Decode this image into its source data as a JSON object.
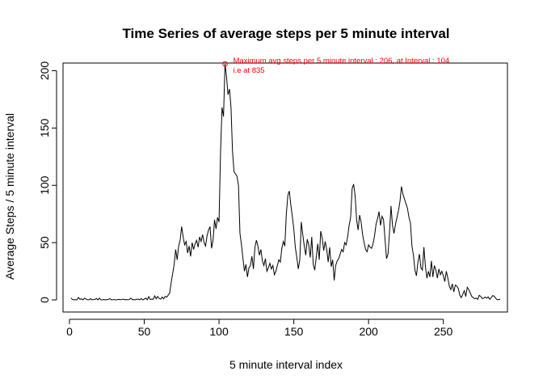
{
  "chart_data": {
    "type": "line",
    "title": "Time Series of average steps per 5 minute interval",
    "xlabel": "5 minute interval index",
    "ylabel": "Average Steps / 5 minute interval",
    "xlim": [
      0,
      288
    ],
    "ylim": [
      0,
      206
    ],
    "x_ticks": [
      0,
      50,
      100,
      150,
      200,
      250
    ],
    "y_ticks": [
      0,
      50,
      100,
      150,
      200
    ],
    "x_tick_labels": [
      "0",
      "50",
      "100",
      "150",
      "200",
      "250"
    ],
    "y_tick_labels": [
      "0",
      "50",
      "100",
      "150",
      "200"
    ],
    "grid": false,
    "series": [
      {
        "color": "#000000",
        "points": [
          [
            1,
            1.7
          ],
          [
            2,
            0.3
          ],
          [
            3,
            0.1
          ],
          [
            4,
            0.2
          ],
          [
            5,
            0.1
          ],
          [
            6,
            2.1
          ],
          [
            7,
            0.5
          ],
          [
            8,
            0.9
          ],
          [
            9,
            0.0
          ],
          [
            10,
            1.5
          ],
          [
            11,
            0.8
          ],
          [
            12,
            0.2
          ],
          [
            13,
            0.1
          ],
          [
            14,
            1.1
          ],
          [
            15,
            0.0
          ],
          [
            16,
            0.3
          ],
          [
            17,
            0.4
          ],
          [
            18,
            1.2
          ],
          [
            19,
            0.0
          ],
          [
            20,
            1.6
          ],
          [
            21,
            0.0
          ],
          [
            22,
            0.1
          ],
          [
            23,
            0.3
          ],
          [
            24,
            0.0
          ],
          [
            25,
            0.2
          ],
          [
            26,
            0.4
          ],
          [
            27,
            1.1
          ],
          [
            28,
            0.1
          ],
          [
            29,
            0.2
          ],
          [
            30,
            0.3
          ],
          [
            31,
            0.0
          ],
          [
            32,
            0.2
          ],
          [
            33,
            0.4
          ],
          [
            34,
            0.2
          ],
          [
            35,
            0.3
          ],
          [
            36,
            0.7
          ],
          [
            37,
            0.1
          ],
          [
            38,
            0.3
          ],
          [
            39,
            0.0
          ],
          [
            40,
            0.4
          ],
          [
            41,
            1.5
          ],
          [
            42,
            0.2
          ],
          [
            43,
            0.3
          ],
          [
            44,
            0.1
          ],
          [
            45,
            0.5
          ],
          [
            46,
            0.7
          ],
          [
            47,
            0.1
          ],
          [
            48,
            1.2
          ],
          [
            49,
            0.0
          ],
          [
            50,
            0.6
          ],
          [
            51,
            1.6
          ],
          [
            52,
            0.1
          ],
          [
            53,
            2.9
          ],
          [
            54,
            0.3
          ],
          [
            55,
            0.7
          ],
          [
            56,
            0.5
          ],
          [
            57,
            3.5
          ],
          [
            58,
            1.0
          ],
          [
            59,
            3.0
          ],
          [
            60,
            1.3
          ],
          [
            61,
            0.6
          ],
          [
            62,
            2.5
          ],
          [
            63,
            0.9
          ],
          [
            64,
            3.1
          ],
          [
            65,
            2.4
          ],
          [
            66,
            4.1
          ],
          [
            67,
            6.0
          ],
          [
            68,
            15.0
          ],
          [
            69,
            23.0
          ],
          [
            70,
            31.0
          ],
          [
            71,
            44.0
          ],
          [
            72,
            35.0
          ],
          [
            73,
            47.0
          ],
          [
            74,
            52.0
          ],
          [
            75,
            64.0
          ],
          [
            76,
            55.0
          ],
          [
            77,
            48.0
          ],
          [
            78,
            51.0
          ],
          [
            79,
            41.0
          ],
          [
            80,
            47.0
          ],
          [
            81,
            38.0
          ],
          [
            82,
            50.0
          ],
          [
            83,
            44.0
          ],
          [
            84,
            49.0
          ],
          [
            85,
            52.0
          ],
          [
            86,
            46.0
          ],
          [
            87,
            55.0
          ],
          [
            88,
            51.0
          ],
          [
            89,
            57.0
          ],
          [
            90,
            50.0
          ],
          [
            91,
            47.0
          ],
          [
            92,
            56.0
          ],
          [
            93,
            61.0
          ],
          [
            94,
            64.0
          ],
          [
            95,
            45.0
          ],
          [
            96,
            52.0
          ],
          [
            97,
            70.0
          ],
          [
            98,
            62.0
          ],
          [
            99,
            72.0
          ],
          [
            100,
            68.0
          ],
          [
            101,
            128.0
          ],
          [
            102,
            168.0
          ],
          [
            103,
            160.0
          ],
          [
            104,
            206.0
          ],
          [
            105,
            195.0
          ],
          [
            106,
            179.0
          ],
          [
            107,
            184.0
          ],
          [
            108,
            168.0
          ],
          [
            109,
            130.0
          ],
          [
            110,
            112.0
          ],
          [
            111,
            110.0
          ],
          [
            112,
            108.0
          ],
          [
            113,
            100.0
          ],
          [
            114,
            58.0
          ],
          [
            115,
            48.0
          ],
          [
            116,
            36.0
          ],
          [
            117,
            25.0
          ],
          [
            118,
            31.0
          ],
          [
            119,
            20.0
          ],
          [
            120,
            28.0
          ],
          [
            121,
            30.0
          ],
          [
            122,
            38.0
          ],
          [
            123,
            27.0
          ],
          [
            124,
            46.0
          ],
          [
            125,
            52.0
          ],
          [
            126,
            47.0
          ],
          [
            127,
            39.0
          ],
          [
            128,
            44.0
          ],
          [
            129,
            34.0
          ],
          [
            130,
            30.0
          ],
          [
            131,
            36.0
          ],
          [
            132,
            25.0
          ],
          [
            133,
            28.0
          ],
          [
            134,
            32.0
          ],
          [
            135,
            27.0
          ],
          [
            136,
            30.0
          ],
          [
            137,
            22.0
          ],
          [
            138,
            25.0
          ],
          [
            139,
            30.0
          ],
          [
            140,
            35.0
          ],
          [
            141,
            33.0
          ],
          [
            142,
            45.0
          ],
          [
            143,
            51.0
          ],
          [
            144,
            47.0
          ],
          [
            145,
            75.0
          ],
          [
            146,
            91.0
          ],
          [
            147,
            95.0
          ],
          [
            148,
            83.0
          ],
          [
            149,
            73.0
          ],
          [
            150,
            62.0
          ],
          [
            151,
            46.0
          ],
          [
            152,
            37.0
          ],
          [
            153,
            27.0
          ],
          [
            154,
            35.0
          ],
          [
            155,
            68.0
          ],
          [
            156,
            57.0
          ],
          [
            157,
            47.0
          ],
          [
            158,
            39.0
          ],
          [
            159,
            53.0
          ],
          [
            160,
            48.0
          ],
          [
            161,
            37.0
          ],
          [
            162,
            55.0
          ],
          [
            163,
            31.0
          ],
          [
            164,
            26.0
          ],
          [
            165,
            37.0
          ],
          [
            166,
            49.0
          ],
          [
            167,
            35.0
          ],
          [
            168,
            60.0
          ],
          [
            169,
            54.0
          ],
          [
            170,
            43.0
          ],
          [
            171,
            51.0
          ],
          [
            172,
            44.0
          ],
          [
            173,
            33.0
          ],
          [
            174,
            46.0
          ],
          [
            175,
            29.0
          ],
          [
            176,
            35.0
          ],
          [
            177,
            17.0
          ],
          [
            178,
            30.0
          ],
          [
            179,
            34.0
          ],
          [
            180,
            36.0
          ],
          [
            181,
            40.0
          ],
          [
            182,
            44.0
          ],
          [
            183,
            42.0
          ],
          [
            184,
            50.0
          ],
          [
            185,
            48.0
          ],
          [
            186,
            55.0
          ],
          [
            187,
            65.0
          ],
          [
            188,
            72.0
          ],
          [
            189,
            97.0
          ],
          [
            190,
            101.0
          ],
          [
            191,
            91.0
          ],
          [
            192,
            70.0
          ],
          [
            193,
            61.0
          ],
          [
            194,
            74.0
          ],
          [
            195,
            68.0
          ],
          [
            196,
            57.0
          ],
          [
            197,
            50.0
          ],
          [
            198,
            44.0
          ],
          [
            199,
            42.0
          ],
          [
            200,
            48.0
          ],
          [
            201,
            46.0
          ],
          [
            202,
            45.0
          ],
          [
            203,
            49.0
          ],
          [
            204,
            56.0
          ],
          [
            205,
            66.0
          ],
          [
            206,
            71.0
          ],
          [
            207,
            77.0
          ],
          [
            208,
            65.0
          ],
          [
            209,
            73.0
          ],
          [
            210,
            70.0
          ],
          [
            211,
            53.0
          ],
          [
            212,
            36.0
          ],
          [
            213,
            40.0
          ],
          [
            214,
            59.0
          ],
          [
            215,
            82.0
          ],
          [
            216,
            65.0
          ],
          [
            217,
            58.0
          ],
          [
            218,
            66.0
          ],
          [
            219,
            72.0
          ],
          [
            220,
            78.0
          ],
          [
            221,
            86.0
          ],
          [
            222,
            99.0
          ],
          [
            223,
            92.0
          ],
          [
            224,
            88.0
          ],
          [
            225,
            84.0
          ],
          [
            226,
            80.0
          ],
          [
            227,
            72.0
          ],
          [
            228,
            67.0
          ],
          [
            229,
            47.0
          ],
          [
            230,
            39.0
          ],
          [
            231,
            26.0
          ],
          [
            232,
            21.0
          ],
          [
            233,
            33.0
          ],
          [
            234,
            40.0
          ],
          [
            235,
            28.0
          ],
          [
            236,
            26.0
          ],
          [
            237,
            46.0
          ],
          [
            238,
            29.0
          ],
          [
            239,
            19.0
          ],
          [
            240,
            25.0
          ],
          [
            241,
            20.0
          ],
          [
            242,
            34.0
          ],
          [
            243,
            20.0
          ],
          [
            244,
            30.0
          ],
          [
            245,
            26.0
          ],
          [
            246,
            19.0
          ],
          [
            247,
            27.0
          ],
          [
            248,
            22.0
          ],
          [
            249,
            25.0
          ],
          [
            250,
            21.0
          ],
          [
            251,
            16.0
          ],
          [
            252,
            25.0
          ],
          [
            253,
            19.0
          ],
          [
            254,
            12.0
          ],
          [
            255,
            9.0
          ],
          [
            256,
            14.0
          ],
          [
            257,
            7.0
          ],
          [
            258,
            13.0
          ],
          [
            259,
            12.0
          ],
          [
            260,
            10.0
          ],
          [
            261,
            4.0
          ],
          [
            262,
            2.0
          ],
          [
            263,
            5.0
          ],
          [
            264,
            8.0
          ],
          [
            265,
            3.0
          ],
          [
            266,
            11.0
          ],
          [
            267,
            9.0
          ],
          [
            268,
            6.0
          ],
          [
            269,
            3.0
          ],
          [
            270,
            2.0
          ],
          [
            271,
            1.0
          ],
          [
            272,
            1.5
          ],
          [
            273,
            0.5
          ],
          [
            274,
            4.0
          ],
          [
            275,
            3.0
          ],
          [
            276,
            1.2
          ],
          [
            277,
            1.5
          ],
          [
            278,
            2.5
          ],
          [
            279,
            1.5
          ],
          [
            280,
            2.6
          ],
          [
            281,
            0.5
          ],
          [
            282,
            1.8
          ],
          [
            283,
            3.8
          ],
          [
            284,
            3.2
          ],
          [
            285,
            1.4
          ],
          [
            286,
            0.2
          ],
          [
            287,
            0.3
          ],
          [
            288,
            0.5
          ]
        ]
      }
    ],
    "highlight": {
      "x": 104,
      "y": 206,
      "color": "#ff0000",
      "label_line1": "Maximum avg steps per 5 minute interval : 206, at Interval : 104",
      "label_line2": "i.e at 835"
    }
  }
}
